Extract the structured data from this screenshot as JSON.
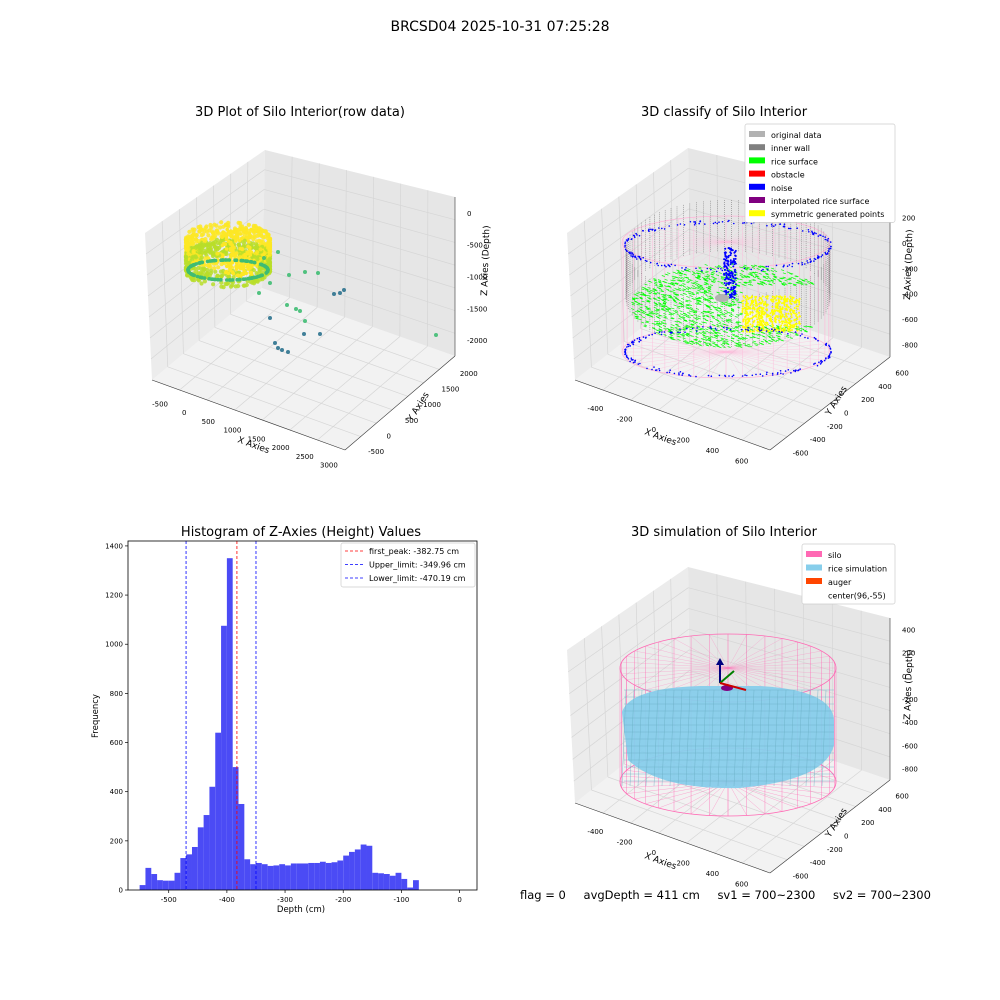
{
  "figure": {
    "title": "BRCSD04 2025-10-31 07:25:28"
  },
  "footer": {
    "flag": "flag = 0",
    "avg_depth": "avgDepth = 411 cm",
    "sv1": "sv1 = 700~2300",
    "sv2": "sv2 = 700~2300"
  },
  "chart_data": [
    {
      "type": "scatter",
      "title": "3D Plot of Silo Interior(row data)",
      "xlabel": "X Axies",
      "ylabel": "Y Axies",
      "zlabel": "Z Axies (Depth)",
      "x_ticks": [
        "-500",
        "0",
        "500",
        "1000",
        "1500",
        "2000",
        "2500",
        "3000"
      ],
      "y_ticks": [
        "-500",
        "0",
        "500",
        "1000",
        "1500",
        "2000"
      ],
      "z_ticks": [
        "0",
        "-500",
        "-1000",
        "-1500",
        "-2000"
      ],
      "xlim": [
        -600,
        3000
      ],
      "ylim": [
        -700,
        2000
      ],
      "zlim": [
        -2300,
        100
      ],
      "grid": true,
      "colormap": [
        "#2c728e",
        "#3fbc73",
        "#b8de29",
        "#fde725"
      ]
    },
    {
      "type": "scatter",
      "title": "3D classify of Silo Interior",
      "xlabel": "X Axies",
      "ylabel": "Y Axies",
      "zlabel": "Z Axies (Depth)",
      "x_ticks": [
        "-400",
        "-200",
        "0",
        "200",
        "400",
        "600"
      ],
      "y_ticks": [
        "-600",
        "-400",
        "-200",
        "0",
        "200",
        "400",
        "600"
      ],
      "z_ticks": [
        "200",
        "0",
        "-200",
        "-400",
        "-600",
        "-800"
      ],
      "z_ticks_hidden": [
        "400"
      ],
      "grid": true,
      "legend_position": "top-right",
      "legend": [
        {
          "label": "original data",
          "color": "#b2b2b2"
        },
        {
          "label": "inner wall",
          "color": "#808080"
        },
        {
          "label": "rice surface",
          "color": "#00ff00"
        },
        {
          "label": "obstacle",
          "color": "#ff0000"
        },
        {
          "label": "noise",
          "color": "#0000ff"
        },
        {
          "label": "interpolated rice surface",
          "color": "#800080"
        },
        {
          "label": "symmetric generated points",
          "color": "#ffff00"
        }
      ],
      "silo_color": "#ffb6d9"
    },
    {
      "type": "bar",
      "title": "Histogram of Z-Axies (Height) Values",
      "xlabel": "Depth (cm)",
      "ylabel": "Frequency",
      "xlim": [
        -570,
        30
      ],
      "ylim": [
        0,
        1420
      ],
      "x_ticks": [
        -500,
        -400,
        -300,
        -200,
        -100,
        0
      ],
      "y_ticks": [
        0,
        200,
        400,
        600,
        800,
        1000,
        1200,
        1400
      ],
      "bar_color": "#4b4bf5",
      "bin_start": -550,
      "bin_width": 10,
      "values": [
        20,
        90,
        65,
        40,
        38,
        38,
        70,
        130,
        145,
        175,
        255,
        305,
        420,
        640,
        1075,
        1350,
        500,
        350,
        125,
        105,
        110,
        105,
        98,
        100,
        105,
        100,
        108,
        108,
        108,
        110,
        110,
        115,
        110,
        113,
        120,
        140,
        155,
        165,
        185,
        180,
        70,
        68,
        65,
        58,
        70,
        45,
        10,
        40
      ],
      "lines": [
        {
          "label": "first_peak: -382.75 cm",
          "x": -382.75,
          "color": "#ff0000"
        },
        {
          "label": "Upper_limit: -349.96 cm",
          "x": -349.96,
          "color": "#0000ff"
        },
        {
          "label": "Lower_limit: -470.19 cm",
          "x": -470.19,
          "color": "#0000ff"
        }
      ],
      "legend_position": "top-right"
    },
    {
      "type": "scatter",
      "title": "3D simulation of Silo Interior",
      "xlabel": "X Axies",
      "ylabel": "Y Axies",
      "zlabel": "Z Axies (Depth)",
      "x_ticks": [
        "-400",
        "-200",
        "0",
        "200",
        "400",
        "600"
      ],
      "y_ticks": [
        "-600",
        "-400",
        "-200",
        "0",
        "200",
        "400",
        "600"
      ],
      "z_ticks": [
        "400",
        "200",
        "0",
        "-200",
        "-400",
        "-600",
        "-800"
      ],
      "grid": true,
      "legend_position": "top-right",
      "legend": [
        {
          "label": "silo",
          "color": "#ff69b4"
        },
        {
          "label": "rice simulation",
          "color": "#87ceeb"
        },
        {
          "label": "auger",
          "color": "#ff4500"
        },
        {
          "label": "center(96,-55)",
          "color": ""
        }
      ],
      "silo_color": "#ff69b4"
    }
  ]
}
